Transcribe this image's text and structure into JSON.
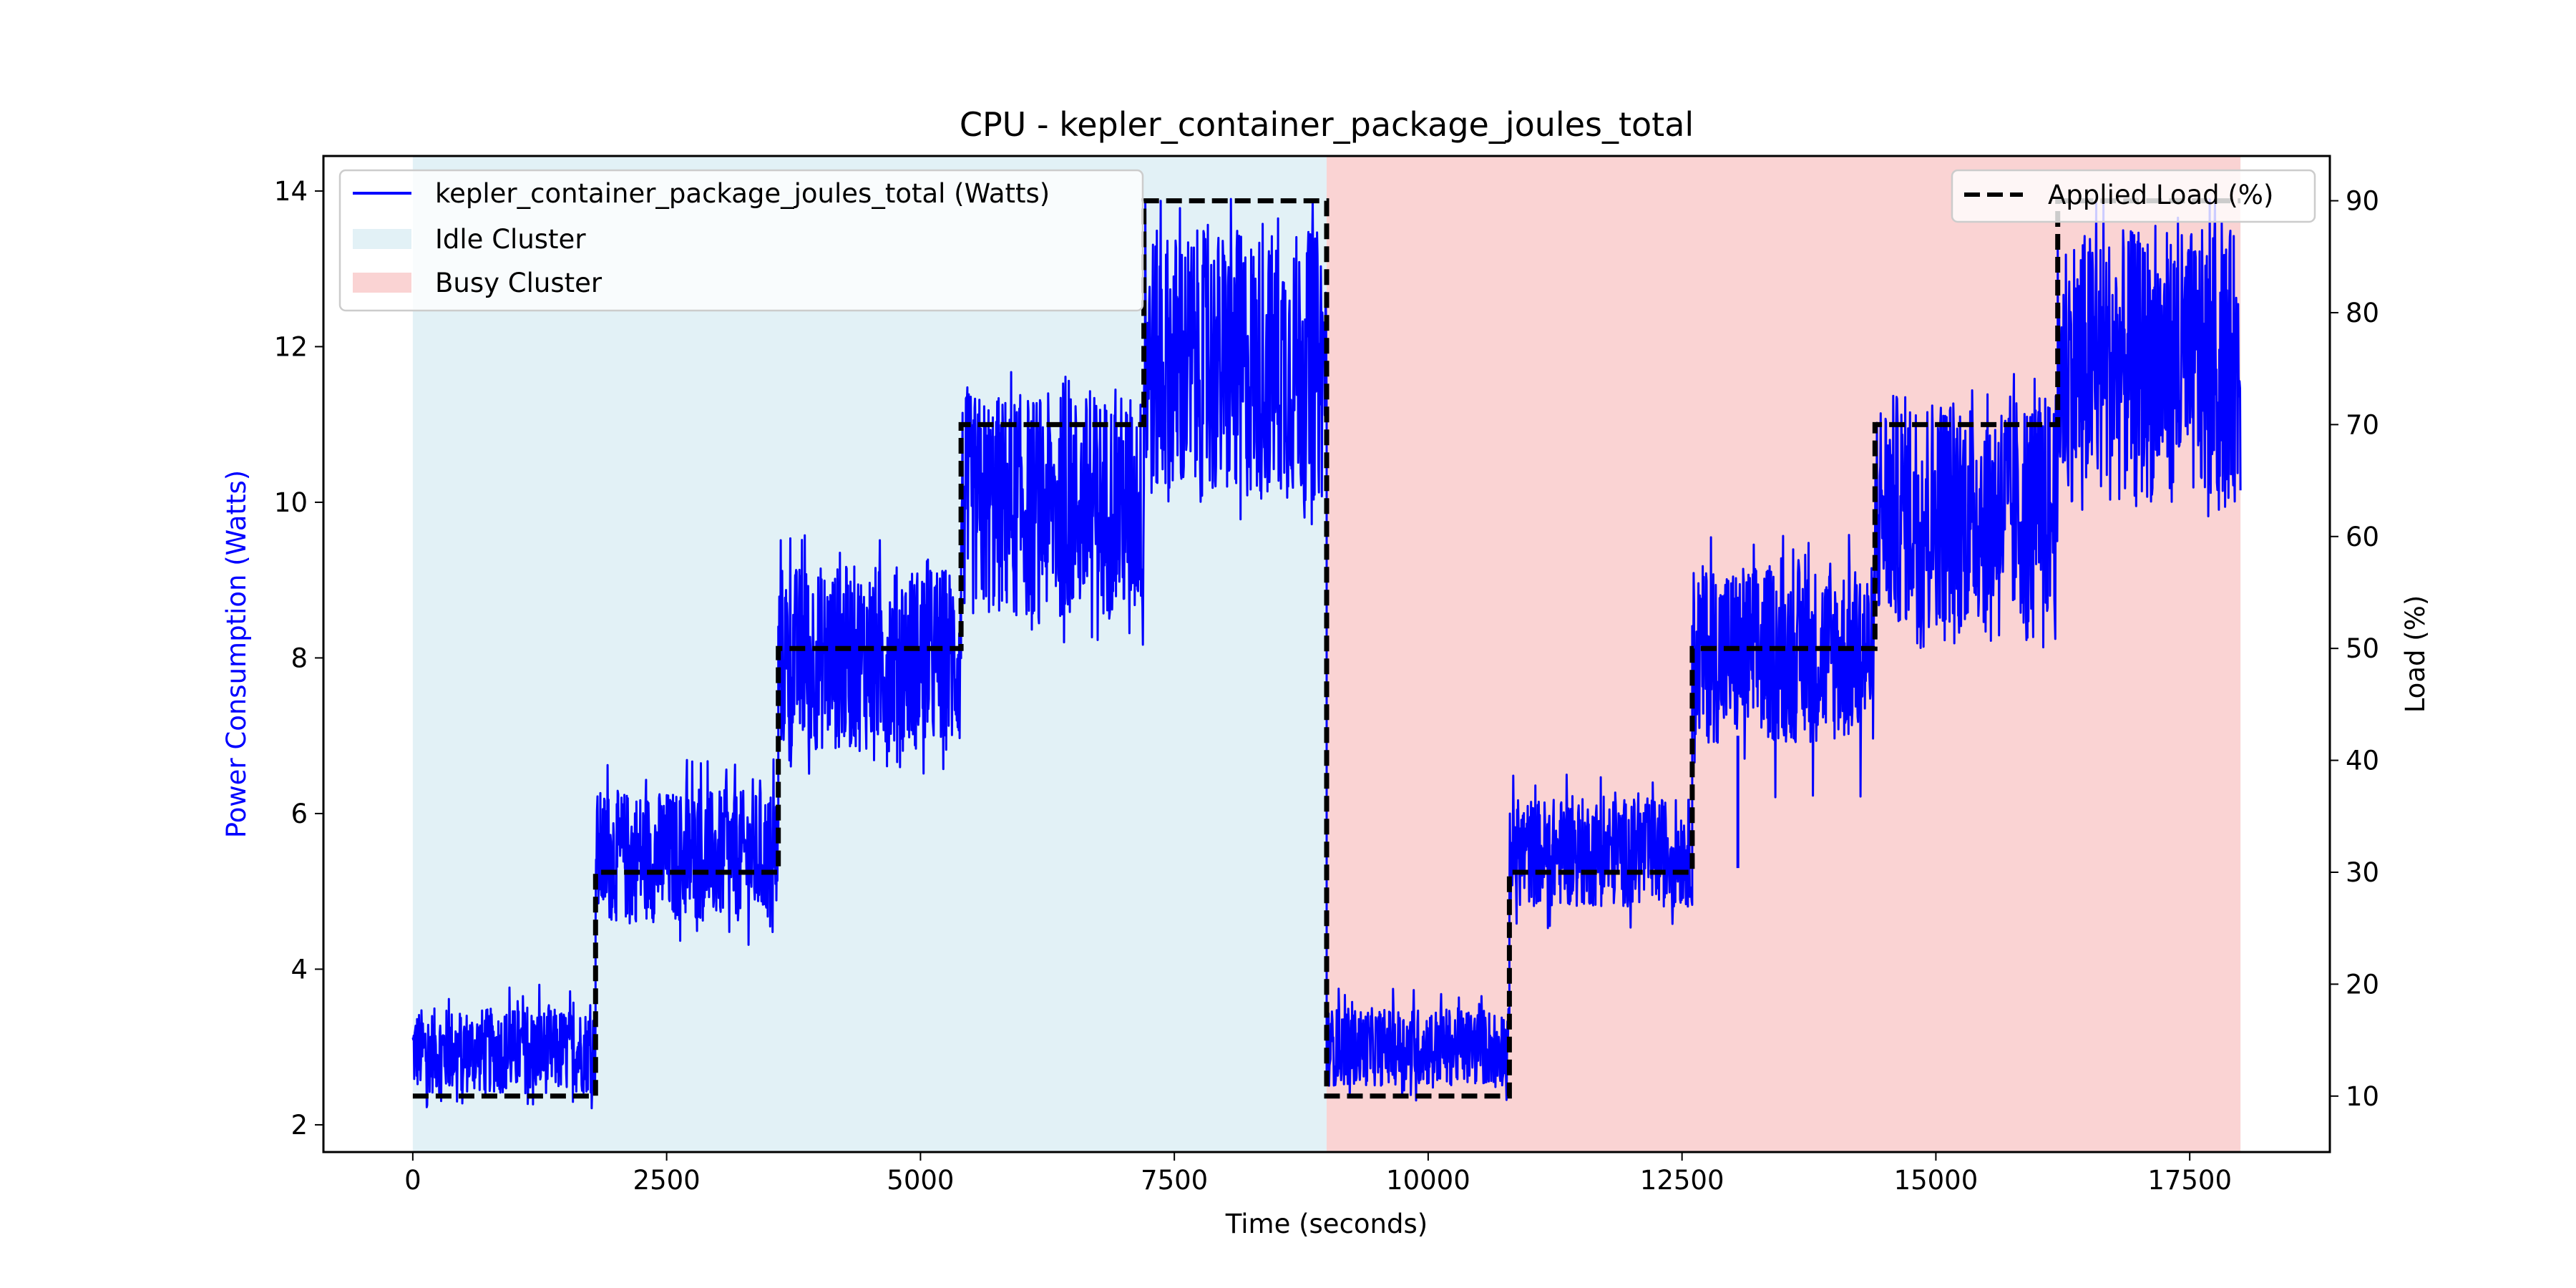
{
  "chart_data": {
    "type": "line",
    "title": "CPU - kepler_container_package_joules_total",
    "xlabel": "Time (seconds)",
    "ylabel": "Power Consumption (Watts)",
    "ylabel_right": "Load (%)",
    "xlim": [
      -880,
      18880
    ],
    "ylim": [
      1.65,
      14.45
    ],
    "ylim_right": [
      5,
      94
    ],
    "xticks": [
      0,
      2500,
      5000,
      7500,
      10000,
      12500,
      15000,
      17500
    ],
    "yticks": [
      2,
      4,
      6,
      8,
      10,
      12,
      14
    ],
    "yticks_right": [
      10,
      20,
      30,
      40,
      50,
      60,
      70,
      80,
      90
    ],
    "grid": false,
    "colors": {
      "power": "#0000ff",
      "load": "#000000",
      "idle": "#add8e6",
      "busy": "#f08080",
      "ylabel_left": "#0000ff"
    },
    "regions": [
      {
        "name": "Idle Cluster",
        "x": [
          0,
          9000
        ]
      },
      {
        "name": "Busy Cluster",
        "x": [
          9000,
          18000
        ]
      }
    ],
    "power_series": {
      "name": "kepler_container_package_joules_total (Watts)",
      "axis": "left",
      "segments": [
        {
          "x": [
            0,
            1800
          ],
          "low": 2.4,
          "high": 3.5,
          "min": 2.2,
          "max": 3.8
        },
        {
          "x": [
            1800,
            3600
          ],
          "low": 4.6,
          "high": 6.3,
          "min": 4.2,
          "max": 6.7
        },
        {
          "x": [
            3600,
            5400
          ],
          "low": 6.8,
          "high": 9.2,
          "min": 6.5,
          "max": 9.6
        },
        {
          "x": [
            5400,
            7200
          ],
          "low": 8.5,
          "high": 11.4,
          "min": 8.1,
          "max": 11.7
        },
        {
          "x": [
            7200,
            9000
          ],
          "low": 10.0,
          "high": 13.5,
          "min": 9.7,
          "max": 13.9
        },
        {
          "x": [
            9000,
            10800
          ],
          "low": 2.5,
          "high": 3.5,
          "min": 2.3,
          "max": 3.8
        },
        {
          "x": [
            10800,
            12600
          ],
          "low": 4.8,
          "high": 6.2,
          "min": 4.4,
          "max": 6.5
        },
        {
          "x": [
            12600,
            14400
          ],
          "low": 6.9,
          "high": 9.2,
          "min": 5.3,
          "max": 9.6
        },
        {
          "x": [
            14400,
            16200
          ],
          "low": 8.4,
          "high": 11.4,
          "min": 8.1,
          "max": 11.8
        },
        {
          "x": [
            16200,
            18000
          ],
          "low": 10.0,
          "high": 13.5,
          "min": 9.6,
          "max": 14.0
        }
      ]
    },
    "load_series": {
      "name": "Applied Load (%)",
      "axis": "right",
      "style": "dashed",
      "x": [
        0,
        1800,
        1800,
        3600,
        3600,
        5400,
        5400,
        7200,
        7200,
        9000,
        9000,
        10800,
        10800,
        12600,
        12600,
        14400,
        14400,
        16200,
        16200,
        18000
      ],
      "y": [
        10,
        10,
        30,
        30,
        50,
        50,
        70,
        70,
        90,
        90,
        10,
        10,
        30,
        30,
        50,
        50,
        70,
        70,
        90,
        90
      ]
    },
    "legend_left": {
      "placement": "upper-left",
      "entries": [
        "kepler_container_package_joules_total (Watts)",
        "Idle Cluster",
        "Busy Cluster"
      ]
    },
    "legend_right": {
      "placement": "upper-right",
      "entries": [
        "Applied Load (%)"
      ]
    }
  }
}
